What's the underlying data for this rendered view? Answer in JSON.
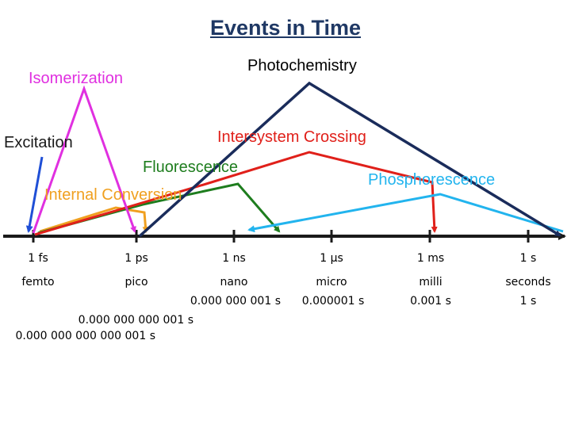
{
  "title": "Events in Time",
  "process_labels": {
    "photochemistry": "Photochemistry",
    "isomerization": "Isomerization",
    "excitation": "Excitation",
    "intersystem_crossing": "Intersystem Crossing",
    "fluorescence": "Fluorescence",
    "phosphorescence": "Phosphorescence",
    "internal_conversion": "Internal Conversion"
  },
  "time_axis": {
    "ticks": [
      "1 fs",
      "1 ps",
      "1 ns",
      "1 µs",
      "1 ms",
      "1 s"
    ],
    "prefixes": [
      "femto",
      "pico",
      "nano",
      "micro",
      "milli",
      "seconds"
    ],
    "values": [
      "0.000 000 001 s",
      "0.000001 s",
      "0.001 s",
      "1 s"
    ],
    "values_pico": "0.000 000 000 001 s",
    "values_femto": "0.000 000 000 000 001 s"
  },
  "colors": {
    "photochemistry": "#1a2c5b",
    "isomerization": "#e030e0",
    "excitation": "#1f4fd6",
    "intersystem_crossing": "#e0201a",
    "fluorescence": "#1e7d1e",
    "phosphorescence": "#22b4ee",
    "internal_conversion": "#f0a020",
    "axis": "#1a1a1a"
  }
}
